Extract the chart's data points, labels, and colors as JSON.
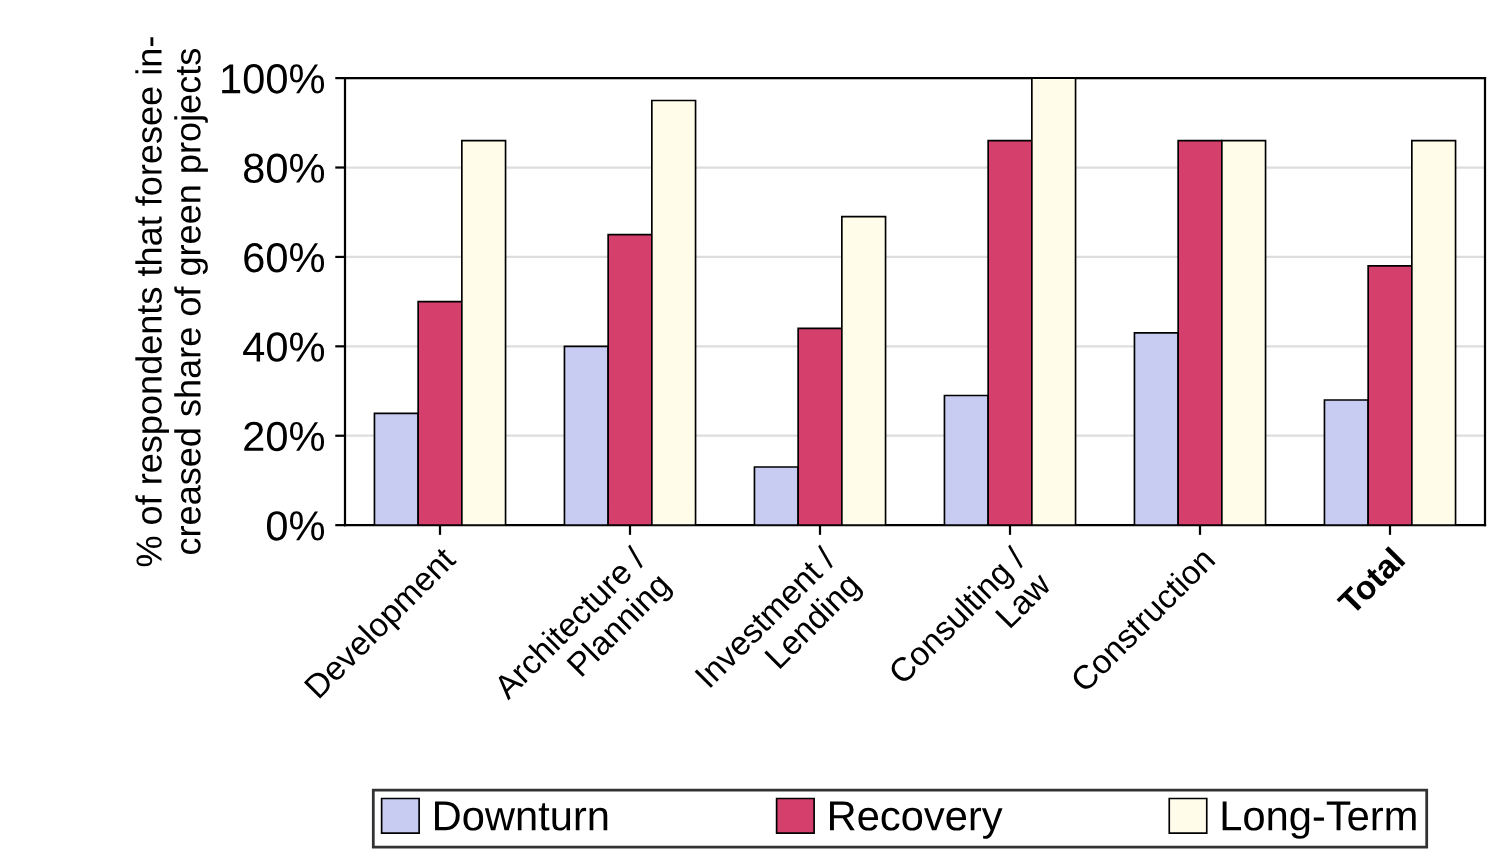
{
  "chart_data": {
    "type": "bar",
    "ylabel": "% of respondents that foresee in-\ncreased share of green projects",
    "categories": [
      "Development",
      "Architecture /\nPlanning",
      "Investment /\nLending",
      "Consulting /\nLaw",
      "Construction",
      "Total"
    ],
    "series": [
      {
        "name": "Downturn",
        "color": "#c8ccf2",
        "values": [
          25,
          40,
          13,
          29,
          43,
          28
        ]
      },
      {
        "name": "Recovery",
        "color": "#d43f6c",
        "values": [
          50,
          65,
          44,
          86,
          86,
          58
        ]
      },
      {
        "name": "Long-Term",
        "color": "#fffcea",
        "values": [
          86,
          95,
          69,
          100,
          86,
          86
        ]
      }
    ],
    "ylim": [
      0,
      100
    ],
    "yticks": [
      {
        "value": 0,
        "label": "0%"
      },
      {
        "value": 20,
        "label": "20%"
      },
      {
        "value": 40,
        "label": "40%"
      },
      {
        "value": 60,
        "label": "60%"
      },
      {
        "value": 80,
        "label": "80%"
      },
      {
        "value": 100,
        "label": "100%"
      }
    ],
    "grid": "y",
    "legend": "bottom"
  }
}
